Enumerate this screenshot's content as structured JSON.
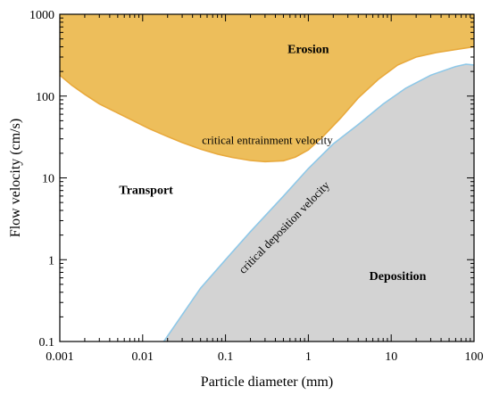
{
  "chart_data": {
    "type": "area",
    "title": "",
    "xlabel": "Particle diameter (mm)",
    "ylabel": "Flow velocity (cm/s)",
    "x_scale": "log",
    "y_scale": "log",
    "xlim": [
      0.001,
      100
    ],
    "ylim": [
      0.1,
      1000
    ],
    "x_ticks": [
      0.001,
      0.01,
      0.1,
      1,
      10,
      100
    ],
    "x_tick_labels": [
      "0.001",
      "0.01",
      "0.1",
      "1",
      "10",
      "100"
    ],
    "y_ticks": [
      0.1,
      1,
      10,
      100,
      1000
    ],
    "y_tick_labels": [
      "0.1",
      "1",
      "10",
      "100",
      "1000"
    ],
    "grid": false,
    "legend": "none",
    "series": [
      {
        "name": "critical entrainment velocity",
        "color": "#E8A93C",
        "fill": "#EDBE5B",
        "x": [
          0.001,
          0.0014,
          0.002,
          0.003,
          0.005,
          0.008,
          0.012,
          0.02,
          0.03,
          0.05,
          0.08,
          0.12,
          0.2,
          0.3,
          0.5,
          0.7,
          1.0,
          1.5,
          2.5,
          4,
          7,
          12,
          20,
          35,
          60,
          100
        ],
        "y": [
          180,
          135,
          105,
          80,
          62,
          49,
          40,
          32,
          27,
          22.5,
          19.5,
          17.8,
          16.3,
          15.8,
          16.2,
          18,
          22,
          32,
          55,
          95,
          160,
          240,
          300,
          340,
          370,
          400
        ]
      },
      {
        "name": "critical deposition velocity",
        "color": "#8EC8E8",
        "fill": "#D3D3D3",
        "x": [
          0.018,
          0.05,
          0.1,
          0.2,
          0.5,
          1,
          2,
          4,
          8,
          15,
          30,
          60,
          80,
          100
        ],
        "y": [
          0.1,
          0.45,
          1.0,
          2.2,
          6.0,
          13,
          26,
          45,
          80,
          125,
          180,
          230,
          245,
          240
        ]
      }
    ],
    "annotations": [
      {
        "text": "Erosion",
        "x": 1.0,
        "y": 380
      },
      {
        "text": "Transport",
        "x": 0.011,
        "y": 7.2
      },
      {
        "text": "Deposition",
        "x": 12,
        "y": 0.64
      }
    ]
  }
}
